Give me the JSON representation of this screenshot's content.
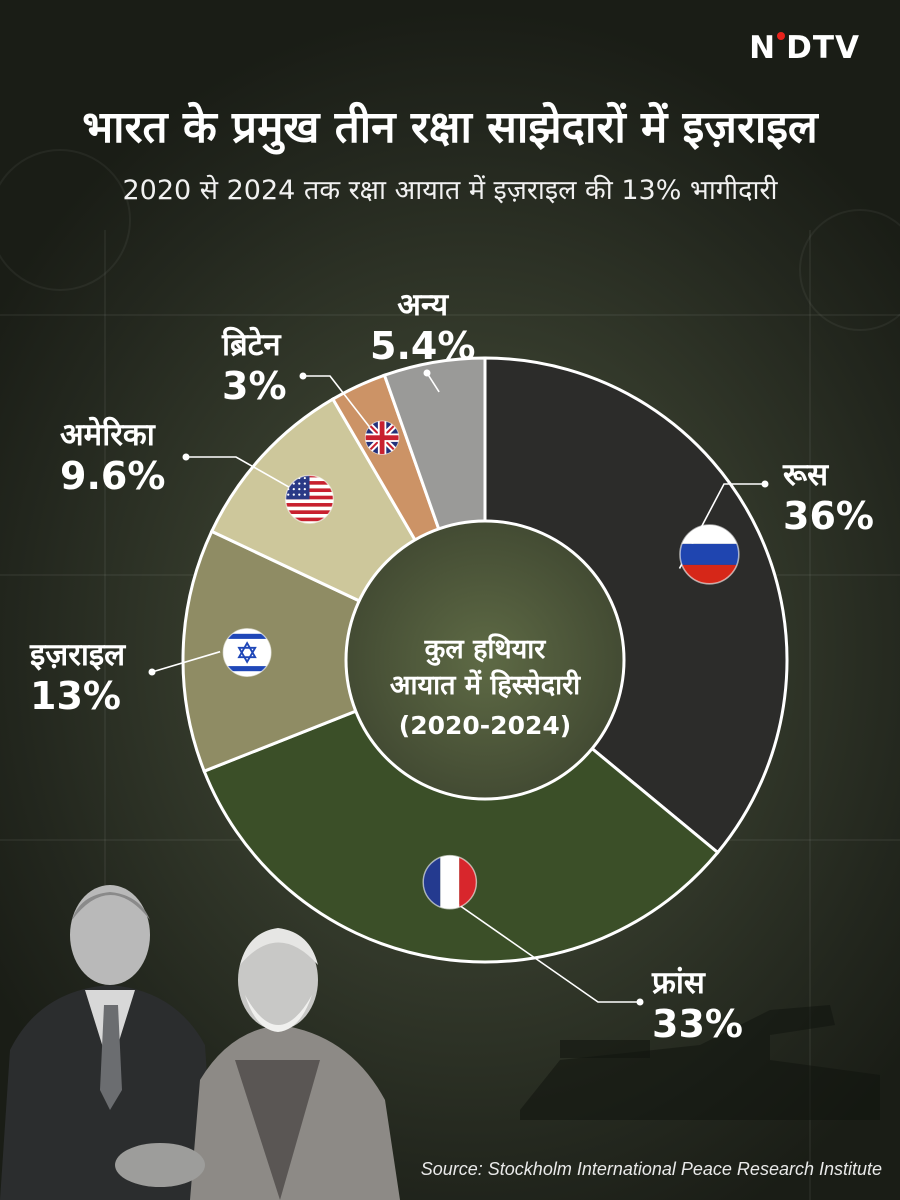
{
  "header": {
    "brand": "NDTV",
    "title": "भारत के प्रमुख तीन रक्षा साझेदारों में इज़राइल",
    "subtitle": "2020 से 2024 तक रक्षा आयात में इज़राइल की 13% भागीदारी"
  },
  "chart_data": {
    "type": "pie",
    "title": "",
    "center_label": [
      "कुल हथियार",
      "आयात में हिस्सेदारी",
      "(2020-2024)"
    ],
    "slices": [
      {
        "label": "रूस",
        "value": 36,
        "value_label": "36%",
        "color": "#2c2c2a",
        "flag": "russia-flag-icon"
      },
      {
        "label": "फ्रांस",
        "value": 33,
        "value_label": "33%",
        "color": "#3b4f28",
        "flag": "france-flag-icon"
      },
      {
        "label": "इज़राइल",
        "value": 13,
        "value_label": "13%",
        "color": "#8f8c64",
        "flag": "israel-flag-icon"
      },
      {
        "label": "अमेरिका",
        "value": 9.6,
        "value_label": "9.6%",
        "color": "#cdc79b",
        "flag": "usa-flag-icon"
      },
      {
        "label": "ब्रिटेन",
        "value": 3,
        "value_label": "3%",
        "color": "#cc9366",
        "flag": "uk-flag-icon"
      },
      {
        "label": "अन्य",
        "value": 5.4,
        "value_label": "5.4%",
        "color": "#9a9a98",
        "flag": ""
      }
    ]
  },
  "footer": {
    "source": "Source: Stockholm International Peace Research Institute"
  }
}
